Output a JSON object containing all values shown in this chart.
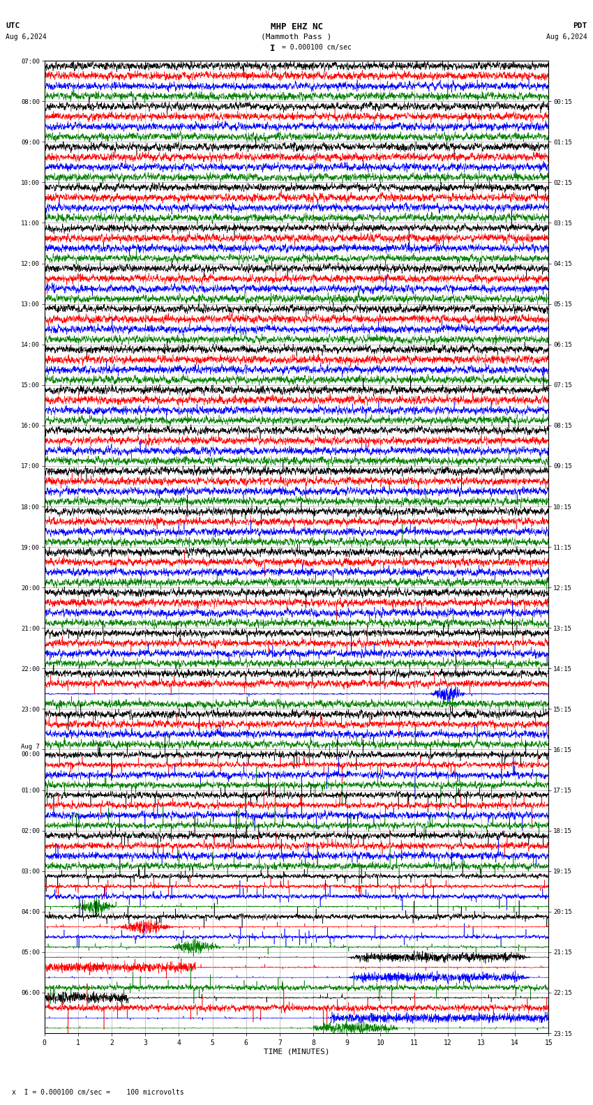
{
  "title_line1": "MHP EHZ NC",
  "title_line2": "(Mammoth Pass )",
  "scale_label": "= 0.000100 cm/sec",
  "utc_label": "UTC",
  "pdt_label": "PDT",
  "date_left": "Aug 6,2024",
  "date_right": "Aug 6,2024",
  "xlabel": "TIME (MINUTES)",
  "footer_label": "x  I = 0.000100 cm/sec =    100 microvolts",
  "bg_color": "#ffffff",
  "grid_color": "#aaaaaa",
  "colors": [
    "black",
    "red",
    "blue",
    "green"
  ],
  "utc_times_left": [
    "07:00",
    "08:00",
    "09:00",
    "10:00",
    "11:00",
    "12:00",
    "13:00",
    "14:00",
    "15:00",
    "16:00",
    "17:00",
    "18:00",
    "19:00",
    "20:00",
    "21:00",
    "22:00",
    "23:00",
    "Aug 7\n00:00",
    "01:00",
    "02:00",
    "03:00",
    "04:00",
    "05:00",
    "06:00"
  ],
  "pdt_times_right": [
    "00:15",
    "01:15",
    "02:15",
    "03:15",
    "04:15",
    "05:15",
    "06:15",
    "07:15",
    "08:15",
    "09:15",
    "10:15",
    "11:15",
    "12:15",
    "13:15",
    "14:15",
    "15:15",
    "16:15",
    "17:15",
    "18:15",
    "19:15",
    "20:15",
    "21:15",
    "22:15",
    "23:15"
  ],
  "n_rows": 24,
  "n_traces_per_row": 4,
  "minutes": 15,
  "samples_per_row": 3000,
  "fig_width": 8.5,
  "fig_height": 15.84,
  "dpi": 100
}
